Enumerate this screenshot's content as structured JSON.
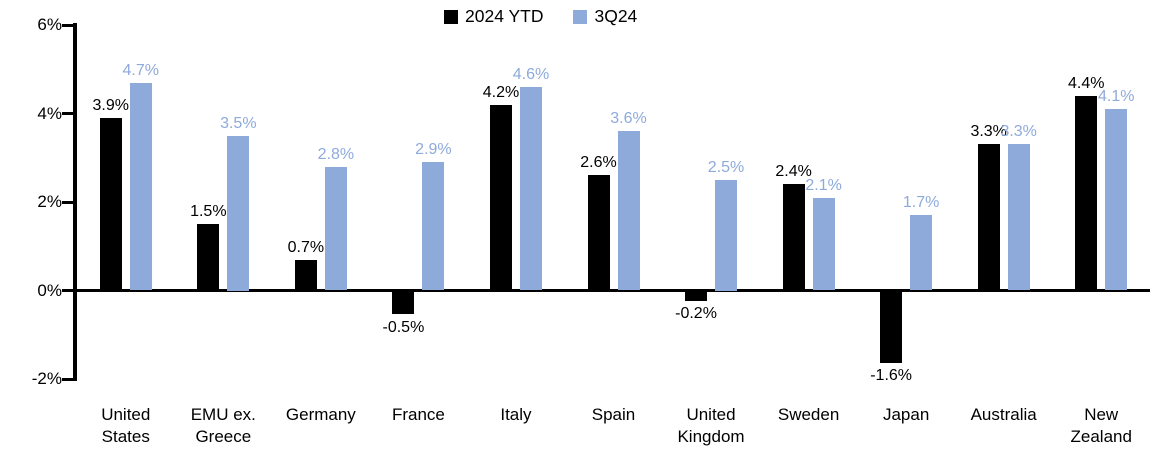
{
  "chart_data": {
    "type": "bar",
    "title": "",
    "xlabel": "",
    "ylabel": "",
    "categories": [
      "United States",
      "EMU ex. Greece",
      "Germany",
      "France",
      "Italy",
      "Spain",
      "United Kingdom",
      "Sweden",
      "Japan",
      "Australia",
      "New Zealand"
    ],
    "series": [
      {
        "name": "2024 YTD",
        "color": "#000000",
        "values": [
          3.9,
          1.5,
          0.7,
          -0.5,
          4.2,
          2.6,
          -0.2,
          2.4,
          -1.6,
          3.3,
          4.4
        ]
      },
      {
        "name": "3Q24",
        "color": "#8EAADB",
        "values": [
          4.7,
          3.5,
          2.8,
          2.9,
          4.6,
          3.6,
          2.5,
          2.1,
          1.7,
          3.3,
          4.1
        ]
      }
    ],
    "y_ticks": [
      {
        "value": 6,
        "label": "6%"
      },
      {
        "value": 4,
        "label": "4%"
      },
      {
        "value": 2,
        "label": "2%"
      },
      {
        "value": 0,
        "label": "0%"
      },
      {
        "value": -2,
        "label": "-2%"
      }
    ],
    "ylim": [
      -2,
      6
    ],
    "grid": false,
    "legend_position": "top-center",
    "value_labels_shown": true,
    "value_label_format": "{value}%",
    "background_color": "#FFFFFF",
    "axis_color": "#000000"
  }
}
